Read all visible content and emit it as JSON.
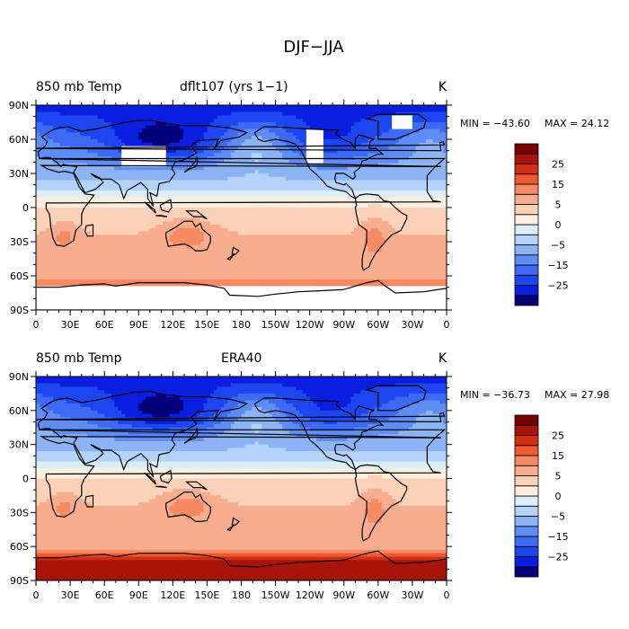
{
  "figure_title": "DJF−JJA",
  "chart_data": [
    {
      "type": "heatmap",
      "variable": "850 mb Temp",
      "case": "dflt107 (yrs 1−1)",
      "units": "K",
      "min_label": "MIN = −43.60",
      "max_label": "MAX =  24.12",
      "min": -43.6,
      "max": 24.12,
      "missing_over_high_terrain": true,
      "lon_ticks": [
        "0",
        "30E",
        "60E",
        "90E",
        "120E",
        "150E",
        "180",
        "150W",
        "120W",
        "90W",
        "60W",
        "30W",
        "0"
      ],
      "lat_ticks": [
        "90N",
        "60N",
        "30N",
        "0",
        "30S",
        "60S",
        "90S"
      ],
      "xlim": [
        0,
        360
      ],
      "ylim": [
        -90,
        90
      ]
    },
    {
      "type": "heatmap",
      "variable": "850 mb Temp",
      "case": "ERA40",
      "units": "K",
      "min_label": "MIN = −36.73",
      "max_label": "MAX =  27.98",
      "min": -36.73,
      "max": 27.98,
      "missing_over_high_terrain": false,
      "lon_ticks": [
        "0",
        "30E",
        "60E",
        "90E",
        "120E",
        "150E",
        "180",
        "150W",
        "120W",
        "90W",
        "60W",
        "30W",
        "0"
      ],
      "lat_ticks": [
        "90N",
        "60N",
        "30N",
        "0",
        "30S",
        "60S",
        "90S"
      ],
      "xlim": [
        0,
        360
      ],
      "ylim": [
        -90,
        90
      ]
    }
  ],
  "colorbar": {
    "labels": [
      "25",
      "15",
      "5",
      "0",
      "−5",
      "−15",
      "−25"
    ],
    "label_values": [
      25,
      15,
      5,
      0,
      -5,
      -15,
      -25
    ],
    "levels": [
      -30,
      -25,
      -20,
      -15,
      -10,
      -5,
      -2,
      0,
      2,
      5,
      10,
      15,
      20,
      25,
      30
    ],
    "colors": [
      "#05007a",
      "#0a1ee0",
      "#1e46f0",
      "#3c6af5",
      "#5f8cf5",
      "#8cb4f5",
      "#b4d2fa",
      "#dceefc",
      "#fcefe0",
      "#fbd1b8",
      "#f8ae8e",
      "#f58a65",
      "#ed5a33",
      "#d32e12",
      "#a8140a",
      "#780000"
    ]
  }
}
